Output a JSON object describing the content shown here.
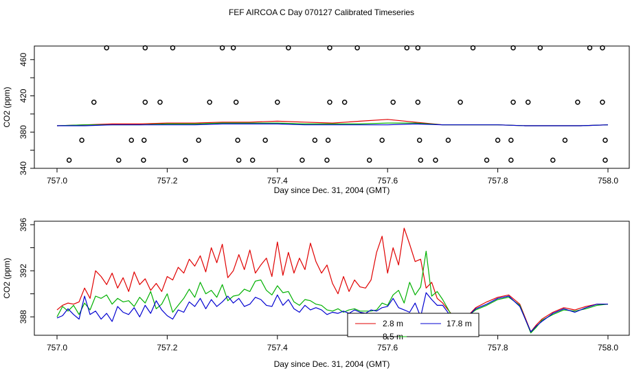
{
  "title": "FEF AIRCOA C  Day 070127  Calibrated Timeseries",
  "colors": {
    "red": "#e00000",
    "green": "#00b000",
    "blue": "#0000d0"
  },
  "chart_data": [
    {
      "type": "scatter",
      "title": "",
      "xlabel": "Day since Dec. 31, 2004 (GMT)",
      "ylabel": "CO2 (ppm)",
      "xlim": [
        757.0,
        758.0
      ],
      "ylim": [
        340,
        475
      ],
      "x_ticks": [
        757.0,
        757.2,
        757.4,
        757.6,
        757.8,
        758.0
      ],
      "x_tick_labels": [
        "757.0",
        "757.2",
        "757.4",
        "757.6",
        "757.8",
        "758.0"
      ],
      "y_ticks": [
        340,
        380,
        420,
        460
      ],
      "y_tick_labels": [
        "340",
        "380",
        "420",
        "460"
      ],
      "y_ticks_unlabeled": [
        360,
        400,
        440
      ],
      "markers": {
        "name": "flags",
        "points": [
          [
            757.09,
            473
          ],
          [
            757.16,
            473
          ],
          [
            757.21,
            473
          ],
          [
            757.3,
            473
          ],
          [
            757.32,
            473
          ],
          [
            757.42,
            473
          ],
          [
            757.495,
            473
          ],
          [
            757.545,
            473
          ],
          [
            757.635,
            473
          ],
          [
            757.655,
            473
          ],
          [
            757.755,
            473
          ],
          [
            757.828,
            473
          ],
          [
            757.877,
            473
          ],
          [
            757.967,
            473
          ],
          [
            757.99,
            473
          ],
          [
            757.067,
            413
          ],
          [
            757.16,
            413
          ],
          [
            757.187,
            413
          ],
          [
            757.277,
            413
          ],
          [
            757.325,
            413
          ],
          [
            757.4,
            413
          ],
          [
            757.495,
            413
          ],
          [
            757.522,
            413
          ],
          [
            757.61,
            413
          ],
          [
            757.655,
            413
          ],
          [
            757.732,
            413
          ],
          [
            757.828,
            413
          ],
          [
            757.855,
            413
          ],
          [
            757.945,
            413
          ],
          [
            757.99,
            413
          ],
          [
            757.045,
            371
          ],
          [
            757.135,
            371
          ],
          [
            757.158,
            371
          ],
          [
            757.257,
            371
          ],
          [
            757.328,
            371
          ],
          [
            757.378,
            371
          ],
          [
            757.468,
            371
          ],
          [
            757.492,
            371
          ],
          [
            757.59,
            371
          ],
          [
            757.658,
            371
          ],
          [
            757.71,
            371
          ],
          [
            757.8,
            371
          ],
          [
            757.824,
            371
          ],
          [
            757.922,
            371
          ],
          [
            757.995,
            371
          ],
          [
            757.022,
            349
          ],
          [
            757.112,
            349
          ],
          [
            757.157,
            349
          ],
          [
            757.233,
            349
          ],
          [
            757.33,
            349
          ],
          [
            757.355,
            349
          ],
          [
            757.445,
            349
          ],
          [
            757.49,
            349
          ],
          [
            757.567,
            349
          ],
          [
            757.66,
            349
          ],
          [
            757.687,
            349
          ],
          [
            757.78,
            349
          ],
          [
            757.824,
            349
          ],
          [
            757.9,
            349
          ],
          [
            757.995,
            349
          ]
        ]
      },
      "series": [
        {
          "name": "2.8 m",
          "color": "#e00000",
          "x": [
            757.0,
            757.05,
            757.1,
            757.15,
            757.2,
            757.25,
            757.3,
            757.35,
            757.4,
            757.45,
            757.5,
            757.55,
            757.6,
            757.65,
            757.7,
            757.75,
            757.8,
            757.85,
            757.9,
            757.95,
            758.0
          ],
          "values": [
            387,
            388,
            389,
            389,
            390,
            390,
            391,
            391,
            392,
            391,
            390,
            392,
            394,
            391,
            388,
            388,
            388,
            387,
            387,
            387,
            388
          ]
        },
        {
          "name": "8.5 m",
          "color": "#00b000",
          "x": [
            757.0,
            757.05,
            757.1,
            757.15,
            757.2,
            757.25,
            757.3,
            757.35,
            757.4,
            757.45,
            757.5,
            757.55,
            757.6,
            757.65,
            757.7,
            757.75,
            757.8,
            757.85,
            757.9,
            757.95,
            758.0
          ],
          "values": [
            387,
            388,
            388,
            388,
            389,
            389,
            390,
            390,
            390,
            389,
            389,
            389,
            390,
            390,
            388,
            388,
            388,
            387,
            387,
            387,
            388
          ]
        },
        {
          "name": "17.8 m",
          "color": "#0000d0",
          "x": [
            757.0,
            757.05,
            757.1,
            757.15,
            757.2,
            757.25,
            757.3,
            757.35,
            757.4,
            757.45,
            757.5,
            757.55,
            757.6,
            757.65,
            757.7,
            757.75,
            757.8,
            757.85,
            757.9,
            757.95,
            758.0
          ],
          "values": [
            387,
            387,
            388,
            388,
            388,
            388,
            389,
            389,
            389,
            388,
            388,
            388,
            388,
            389,
            388,
            388,
            388,
            387,
            387,
            387,
            388
          ]
        }
      ]
    },
    {
      "type": "line",
      "title": "",
      "xlabel": "Day since Dec. 31, 2004 (GMT)",
      "ylabel": "CO2 (ppm)",
      "xlim": [
        757.0,
        758.0
      ],
      "ylim": [
        386.4,
        396.3
      ],
      "x_ticks": [
        757.0,
        757.2,
        757.4,
        757.6,
        757.8,
        758.0
      ],
      "x_tick_labels": [
        "757.0",
        "757.2",
        "757.4",
        "757.6",
        "757.8",
        "758.0"
      ],
      "y_ticks": [
        388,
        392,
        396
      ],
      "y_tick_labels": [
        "388",
        "392",
        "396"
      ],
      "y_ticks_unlabeled": [
        390,
        394
      ],
      "legend": {
        "placement": "bottom-center",
        "entries": [
          "2.8 m",
          "17.8 m",
          "8.5 m"
        ]
      },
      "series": [
        {
          "name": "2.8 m",
          "color": "#e00000",
          "x": [
            757.0,
            757.01,
            757.02,
            757.03,
            757.04,
            757.05,
            757.06,
            757.07,
            757.08,
            757.09,
            757.1,
            757.11,
            757.12,
            757.13,
            757.14,
            757.15,
            757.16,
            757.17,
            757.18,
            757.19,
            757.2,
            757.21,
            757.22,
            757.23,
            757.24,
            757.25,
            757.26,
            757.27,
            757.28,
            757.29,
            757.3,
            757.31,
            757.32,
            757.33,
            757.34,
            757.35,
            757.36,
            757.37,
            757.38,
            757.39,
            757.4,
            757.41,
            757.42,
            757.43,
            757.44,
            757.45,
            757.46,
            757.47,
            757.48,
            757.49,
            757.5,
            757.51,
            757.52,
            757.53,
            757.54,
            757.55,
            757.56,
            757.57,
            757.58,
            757.59,
            757.6,
            757.61,
            757.62,
            757.63,
            757.64,
            757.65,
            757.66,
            757.67,
            757.68,
            757.69,
            757.7,
            757.72,
            757.74,
            757.76,
            757.78,
            757.8,
            757.82,
            757.84,
            757.86,
            757.87,
            757.88,
            757.9,
            757.92,
            757.94,
            757.96,
            757.98,
            758.0
          ],
          "values": [
            388.6,
            389.0,
            389.2,
            389.1,
            389.3,
            390.5,
            389.6,
            392.0,
            391.5,
            390.8,
            391.8,
            390.5,
            391.4,
            390.2,
            391.9,
            390.8,
            391.3,
            390.3,
            390.9,
            390.2,
            391.5,
            391.2,
            392.3,
            391.8,
            393.0,
            392.4,
            393.3,
            391.9,
            394.0,
            392.7,
            394.3,
            391.4,
            392.0,
            393.4,
            392.1,
            393.8,
            391.8,
            392.5,
            393.1,
            391.5,
            394.5,
            391.6,
            393.6,
            391.8,
            393.1,
            392.1,
            394.4,
            392.8,
            391.8,
            392.5,
            390.9,
            390.0,
            391.5,
            390.2,
            391.2,
            390.6,
            390.5,
            391.2,
            393.6,
            395.0,
            391.8,
            394.0,
            392.5,
            395.7,
            394.3,
            392.8,
            393.0,
            390.5,
            391.0,
            389.6,
            389.2,
            388.0,
            387.8,
            388.8,
            389.3,
            389.7,
            389.9,
            389.1,
            386.7,
            387.3,
            387.8,
            388.4,
            388.8,
            388.6,
            388.9,
            389.1,
            389.1
          ]
        },
        {
          "name": "8.5 m",
          "color": "#00b000",
          "x": [
            757.0,
            757.01,
            757.02,
            757.03,
            757.04,
            757.05,
            757.06,
            757.07,
            757.08,
            757.09,
            757.1,
            757.11,
            757.12,
            757.13,
            757.14,
            757.15,
            757.16,
            757.17,
            757.18,
            757.19,
            757.2,
            757.21,
            757.22,
            757.23,
            757.24,
            757.25,
            757.26,
            757.27,
            757.28,
            757.29,
            757.3,
            757.31,
            757.32,
            757.33,
            757.34,
            757.35,
            757.36,
            757.37,
            757.38,
            757.39,
            757.4,
            757.41,
            757.42,
            757.43,
            757.44,
            757.45,
            757.46,
            757.47,
            757.48,
            757.49,
            757.5,
            757.51,
            757.52,
            757.53,
            757.54,
            757.55,
            757.56,
            757.57,
            757.58,
            757.59,
            757.6,
            757.61,
            757.62,
            757.63,
            757.64,
            757.65,
            757.66,
            757.67,
            757.68,
            757.69,
            757.7,
            757.72,
            757.74,
            757.76,
            757.78,
            757.8,
            757.82,
            757.84,
            757.86,
            757.87,
            757.88,
            757.9,
            757.92,
            757.94,
            757.96,
            757.98,
            758.0
          ],
          "values": [
            388.0,
            388.9,
            388.5,
            389.0,
            388.2,
            389.2,
            388.6,
            389.8,
            389.6,
            389.9,
            389.1,
            389.6,
            389.3,
            389.4,
            388.9,
            389.7,
            389.2,
            390.2,
            388.7,
            389.1,
            390.0,
            388.4,
            389.0,
            389.6,
            390.4,
            389.7,
            391.0,
            390.0,
            390.3,
            389.7,
            390.8,
            389.4,
            389.8,
            389.9,
            390.4,
            390.2,
            391.1,
            391.2,
            390.3,
            389.9,
            390.7,
            390.1,
            390.2,
            389.3,
            389.0,
            389.5,
            389.4,
            389.1,
            389.0,
            388.6,
            388.5,
            388.7,
            388.4,
            388.6,
            388.7,
            388.5,
            388.5,
            388.5,
            388.6,
            389.2,
            389.0,
            389.9,
            390.3,
            389.2,
            391.0,
            389.9,
            390.6,
            393.7,
            389.8,
            390.2,
            389.5,
            387.8,
            387.9,
            388.6,
            389.0,
            389.5,
            389.7,
            389.0,
            386.6,
            387.1,
            387.7,
            388.2,
            388.6,
            388.5,
            388.7,
            389.0,
            389.1
          ]
        },
        {
          "name": "17.8 m",
          "color": "#0000d0",
          "x": [
            757.0,
            757.01,
            757.02,
            757.03,
            757.04,
            757.05,
            757.06,
            757.07,
            757.08,
            757.09,
            757.1,
            757.11,
            757.12,
            757.13,
            757.14,
            757.15,
            757.16,
            757.17,
            757.18,
            757.19,
            757.2,
            757.21,
            757.22,
            757.23,
            757.24,
            757.25,
            757.26,
            757.27,
            757.28,
            757.29,
            757.3,
            757.31,
            757.32,
            757.33,
            757.34,
            757.35,
            757.36,
            757.37,
            757.38,
            757.39,
            757.4,
            757.41,
            757.42,
            757.43,
            757.44,
            757.45,
            757.46,
            757.47,
            757.48,
            757.49,
            757.5,
            757.51,
            757.52,
            757.53,
            757.54,
            757.55,
            757.56,
            757.57,
            757.58,
            757.59,
            757.6,
            757.61,
            757.62,
            757.63,
            757.64,
            757.65,
            757.66,
            757.67,
            757.68,
            757.69,
            757.7,
            757.72,
            757.74,
            757.76,
            757.78,
            757.8,
            757.82,
            757.84,
            757.86,
            757.87,
            757.88,
            757.9,
            757.92,
            757.94,
            757.96,
            757.98,
            758.0
          ],
          "values": [
            387.9,
            388.1,
            388.7,
            388.2,
            387.8,
            389.8,
            388.2,
            388.5,
            387.8,
            388.3,
            387.6,
            388.9,
            388.4,
            388.2,
            388.8,
            388.0,
            389.0,
            388.3,
            389.4,
            388.6,
            388.1,
            387.8,
            388.6,
            388.4,
            389.3,
            388.9,
            389.6,
            388.7,
            389.5,
            388.9,
            389.3,
            389.8,
            389.2,
            389.6,
            388.9,
            389.1,
            389.7,
            389.5,
            389.0,
            388.9,
            389.9,
            389.0,
            389.5,
            388.7,
            388.4,
            389.0,
            388.6,
            388.8,
            388.6,
            388.2,
            388.4,
            388.3,
            388.5,
            388.3,
            388.6,
            388.4,
            388.3,
            388.6,
            388.5,
            388.8,
            388.9,
            389.6,
            388.8,
            388.6,
            388.4,
            389.2,
            388.0,
            390.1,
            389.5,
            389.0,
            389.0,
            387.7,
            387.8,
            388.7,
            389.1,
            389.6,
            389.8,
            388.9,
            386.7,
            387.2,
            387.6,
            388.3,
            388.7,
            388.4,
            388.8,
            389.1,
            389.1
          ]
        }
      ]
    }
  ]
}
